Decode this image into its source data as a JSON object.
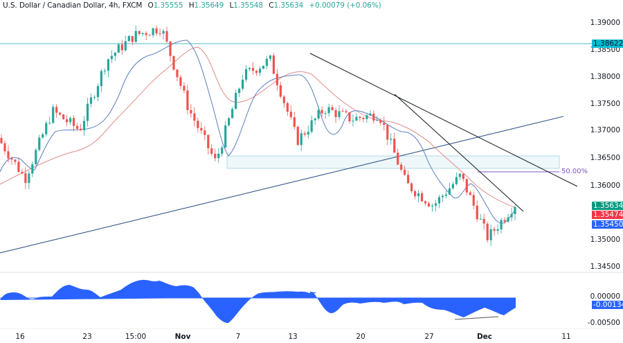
{
  "header": {
    "symbol": "U.S. Dollar / Canadian Dollar, 4h, FXCM",
    "open_label": "O",
    "open": "1.35555",
    "high_label": "H",
    "high": "1.35649",
    "low_label": "L",
    "low": "1.35548",
    "close_label": "C",
    "close": "1.35634",
    "change": "+0.00079 (+0.06%)"
  },
  "price_axis": {
    "ticks": [
      "1.39000",
      "1.38500",
      "1.38000",
      "1.37500",
      "1.37000",
      "1.36500",
      "1.36000",
      "1.35500",
      "1.35000",
      "1.34500"
    ],
    "badges": [
      {
        "label": "1.38622",
        "color": "#00bcd4",
        "text_color": "#131722"
      },
      {
        "label": "1.35634",
        "color": "#089981",
        "text_color": "#ffffff"
      },
      {
        "label": "1.35474",
        "color": "#f23645",
        "text_color": "#ffffff"
      },
      {
        "label": "1.35450",
        "color": "#2962ff",
        "text_color": "#ffffff"
      }
    ]
  },
  "oscillator_axis": {
    "ticks": [
      "0.00000",
      "-0.00500"
    ],
    "badge": {
      "label": "-0.00134",
      "color": "#2962ff"
    }
  },
  "time_axis": {
    "labels": [
      {
        "text": "16",
        "bold": false
      },
      {
        "text": "23",
        "bold": false
      },
      {
        "text": "15:00",
        "bold": false
      },
      {
        "text": "Nov",
        "bold": true
      },
      {
        "text": "7",
        "bold": false
      },
      {
        "text": "13",
        "bold": false
      },
      {
        "text": "20",
        "bold": false
      },
      {
        "text": "27",
        "bold": false
      },
      {
        "text": "Dec",
        "bold": true
      },
      {
        "text": "11",
        "bold": false
      }
    ]
  },
  "annotations": {
    "fib_label": "50.00%",
    "horizontal_resistance": "1.38622"
  },
  "colors": {
    "up": "#26a69a",
    "down": "#ef5350",
    "ma_fast": "#5b7dbd",
    "ma_slow": "#e08a8a",
    "oscillator": "#2962ff",
    "resistance_line": "#4fb8c9",
    "trendline": "#131722",
    "support_trendline": "#34578c",
    "fib": "#7e57c2"
  },
  "chart_data": {
    "type": "candlestick",
    "title": "U.S. Dollar / Canadian Dollar, 4h, FXCM",
    "xlabel": "",
    "ylabel": "",
    "x_ticks": [
      "16",
      "23",
      "15:00",
      "Nov",
      "7",
      "13",
      "20",
      "27",
      "Dec",
      "11"
    ],
    "ylim": [
      1.344,
      1.3915
    ],
    "last": {
      "open": 1.35555,
      "high": 1.35649,
      "low": 1.35548,
      "close": 1.35634,
      "change": 0.00079,
      "change_pct": 0.06
    },
    "levels": {
      "resistance": 1.38622,
      "ma_slow_last": 1.35474,
      "ma_fast_last": 1.3545,
      "zone_top": 1.3655,
      "zone_bottom": 1.363,
      "fib_50": 1.3625
    },
    "price_path_approx": [
      {
        "date": "Oct 13",
        "price": 1.3685
      },
      {
        "date": "Oct 16",
        "price": 1.361
      },
      {
        "date": "Oct 19",
        "price": 1.3735
      },
      {
        "date": "Oct 23",
        "price": 1.37
      },
      {
        "date": "Oct 26",
        "price": 1.383
      },
      {
        "date": "Oct 27",
        "price": 1.3875
      },
      {
        "date": "Oct 31",
        "price": 1.389
      },
      {
        "date": "Nov 3",
        "price": 1.374
      },
      {
        "date": "Nov 6",
        "price": 1.364
      },
      {
        "date": "Nov 9",
        "price": 1.38
      },
      {
        "date": "Nov 13",
        "price": 1.383
      },
      {
        "date": "Nov 15",
        "price": 1.368
      },
      {
        "date": "Nov 17",
        "price": 1.374
      },
      {
        "date": "Nov 21",
        "price": 1.372
      },
      {
        "date": "Nov 23",
        "price": 1.373
      },
      {
        "date": "Nov 27",
        "price": 1.36
      },
      {
        "date": "Nov 29",
        "price": 1.356
      },
      {
        "date": "Nov 30",
        "price": 1.3615
      },
      {
        "date": "Dec 1",
        "price": 1.35
      },
      {
        "date": "Dec 4",
        "price": 1.3563
      }
    ],
    "oscillator": {
      "ticks": [
        0.0,
        -0.005
      ],
      "last": -0.00134
    }
  }
}
